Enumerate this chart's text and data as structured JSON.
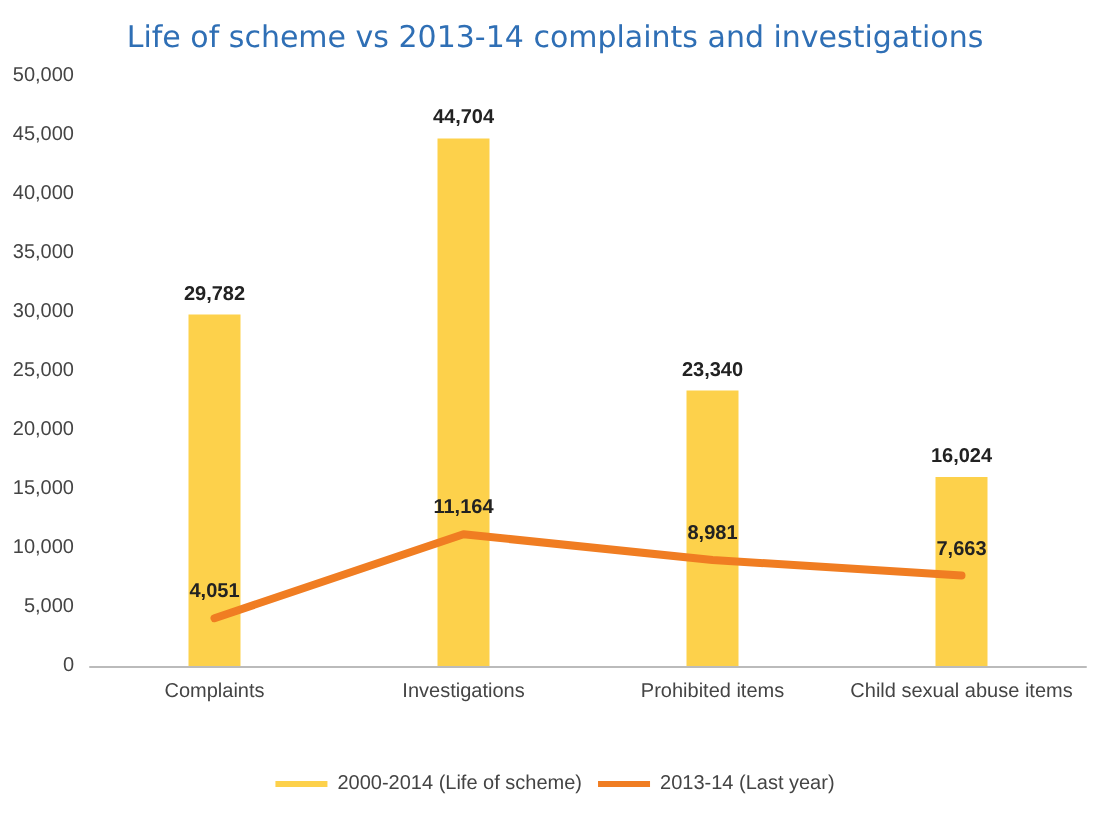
{
  "chart_data": {
    "type": "bar",
    "title": "Life of scheme vs 2013-14 complaints and investigations",
    "categories": [
      "Complaints",
      "Investigations",
      "Prohibited items",
      "Child sexual abuse items"
    ],
    "series": [
      {
        "name": "2000-2014 (Life of scheme)",
        "color": "#fdd14b",
        "values": [
          29782,
          44704,
          23340,
          16024
        ],
        "value_labels": [
          "29,782",
          "44,704",
          "23,340",
          "16,024"
        ]
      },
      {
        "name": "2013-14 (Last year)",
        "type": "line",
        "color": "#f07d22",
        "values": [
          4051,
          11164,
          8981,
          7663
        ],
        "value_labels": [
          "4,051",
          "11,164",
          "8,981",
          "7,663"
        ]
      }
    ],
    "ylim": [
      0,
      50000
    ],
    "yticks": [
      {
        "value": 0,
        "label": "0"
      },
      {
        "value": 5000,
        "label": "5,000"
      },
      {
        "value": 10000,
        "label": "10,000"
      },
      {
        "value": 15000,
        "label": "15,000"
      },
      {
        "value": 20000,
        "label": "20,000"
      },
      {
        "value": 25000,
        "label": "25,000"
      },
      {
        "value": 30000,
        "label": "30,000"
      },
      {
        "value": 35000,
        "label": "35,000"
      },
      {
        "value": 40000,
        "label": "40,000"
      },
      {
        "value": 45000,
        "label": "45,000"
      },
      {
        "value": 50000,
        "label": "50,000"
      }
    ],
    "grid": false,
    "legend": "bottom",
    "marker": "none",
    "line_style": "solid"
  }
}
